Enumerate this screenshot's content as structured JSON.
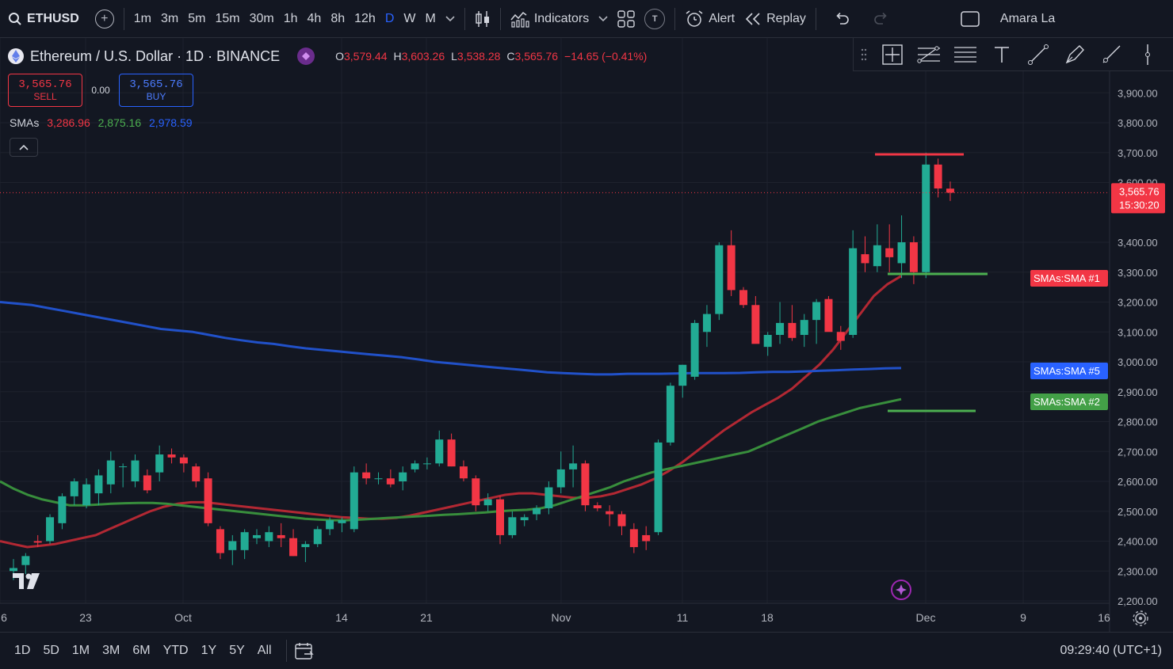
{
  "topbar": {
    "symbol": "ETHUSD",
    "intervals": [
      "1m",
      "3m",
      "5m",
      "15m",
      "30m",
      "1h",
      "4h",
      "8h",
      "12h",
      "D",
      "W",
      "M"
    ],
    "active_interval": "D",
    "indicators_label": "Indicators",
    "t_badge": "T",
    "alert_label": "Alert",
    "replay_label": "Replay",
    "user_label": "Amara La"
  },
  "legend": {
    "title": "Ethereum / U.S. Dollar · 1D · BINANCE",
    "o_label": "O",
    "o": "3,579.44",
    "h_label": "H",
    "h": "3,603.26",
    "l_label": "L",
    "l": "3,538.28",
    "c_label": "C",
    "c": "3,565.76",
    "change": "−14.65 (−0.41%)",
    "sell_price": "3,565.76",
    "sell_label": "SELL",
    "spread": "0.00",
    "buy_price": "3,565.76",
    "buy_label": "BUY",
    "sma_label": "SMAs",
    "sma1": "3,286.96",
    "sma2": "2,875.16",
    "sma5": "2,978.59"
  },
  "price_axis": {
    "ticks": [
      "3,900.00",
      "3,800.00",
      "3,700.00",
      "3,600.00",
      "3,400.00",
      "3,300.00",
      "3,200.00",
      "3,100.00",
      "3,000.00",
      "2,900.00",
      "2,800.00",
      "2,700.00",
      "2,600.00",
      "2,500.00",
      "2,400.00",
      "2,300.00",
      "2,200.00"
    ],
    "tick_values": [
      3900,
      3800,
      3700,
      3600,
      3400,
      3300,
      3200,
      3100,
      3000,
      2900,
      2800,
      2700,
      2600,
      2500,
      2400,
      2300,
      2200
    ],
    "last_price": "3,565.76",
    "countdown": "15:30:20",
    "last_value": 3565.76,
    "sma1_tag": "SMAs:SMA #1",
    "sma5_tag": "SMAs:SMA #5",
    "sma2_tag": "SMAs:SMA #2"
  },
  "time_axis": {
    "labels": [
      "6",
      "23",
      "Oct",
      "14",
      "21",
      "Nov",
      "11",
      "18",
      "Dec",
      "9",
      "16"
    ]
  },
  "bottombar": {
    "ranges": [
      "1D",
      "5D",
      "1M",
      "3M",
      "6M",
      "YTD",
      "1Y",
      "5Y",
      "All"
    ],
    "clock": "09:29:40 (UTC+1)"
  },
  "colors": {
    "up": "#22ab94",
    "down": "#f23645",
    "sma1": "#b22833",
    "sma2": "#388e3c",
    "sma5": "#2151c9",
    "accent": "#2962ff"
  },
  "chart_data": {
    "type": "candlestick",
    "ohlc": [
      [
        2300,
        2340,
        2270,
        2310
      ],
      [
        2320,
        2360,
        2290,
        2350
      ],
      [
        2400,
        2420,
        2380,
        2395
      ],
      [
        2400,
        2490,
        2390,
        2480
      ],
      [
        2460,
        2560,
        2440,
        2550
      ],
      [
        2550,
        2610,
        2520,
        2600
      ],
      [
        2520,
        2610,
        2510,
        2590
      ],
      [
        2560,
        2640,
        2520,
        2620
      ],
      [
        2590,
        2700,
        2560,
        2670
      ],
      [
        2650,
        2660,
        2580,
        2650
      ],
      [
        2600,
        2690,
        2580,
        2670
      ],
      [
        2620,
        2640,
        2560,
        2570
      ],
      [
        2630,
        2720,
        2600,
        2690
      ],
      [
        2690,
        2710,
        2660,
        2680
      ],
      [
        2680,
        2690,
        2630,
        2660
      ],
      [
        2650,
        2660,
        2580,
        2600
      ],
      [
        2610,
        2630,
        2450,
        2460
      ],
      [
        2440,
        2450,
        2340,
        2360
      ],
      [
        2370,
        2420,
        2320,
        2400
      ],
      [
        2370,
        2440,
        2340,
        2430
      ],
      [
        2410,
        2440,
        2390,
        2420
      ],
      [
        2400,
        2450,
        2380,
        2430
      ],
      [
        2420,
        2460,
        2380,
        2410
      ],
      [
        2410,
        2440,
        2350,
        2350
      ],
      [
        2380,
        2400,
        2330,
        2390
      ],
      [
        2390,
        2450,
        2380,
        2440
      ],
      [
        2440,
        2480,
        2420,
        2470
      ],
      [
        2460,
        2480,
        2430,
        2470
      ],
      [
        2440,
        2650,
        2430,
        2630
      ],
      [
        2630,
        2660,
        2590,
        2610
      ],
      [
        2610,
        2630,
        2590,
        2610
      ],
      [
        2610,
        2640,
        2580,
        2590
      ],
      [
        2600,
        2650,
        2570,
        2630
      ],
      [
        2640,
        2670,
        2630,
        2660
      ],
      [
        2660,
        2680,
        2640,
        2660
      ],
      [
        2660,
        2770,
        2650,
        2740
      ],
      [
        2740,
        2760,
        2650,
        2650
      ],
      [
        2650,
        2670,
        2600,
        2610
      ],
      [
        2610,
        2620,
        2500,
        2520
      ],
      [
        2520,
        2560,
        2500,
        2540
      ],
      [
        2540,
        2550,
        2390,
        2420
      ],
      [
        2420,
        2500,
        2410,
        2480
      ],
      [
        2470,
        2490,
        2450,
        2480
      ],
      [
        2490,
        2520,
        2470,
        2510
      ],
      [
        2510,
        2600,
        2490,
        2580
      ],
      [
        2580,
        2700,
        2560,
        2640
      ],
      [
        2640,
        2720,
        2580,
        2660
      ],
      [
        2660,
        2670,
        2500,
        2520
      ],
      [
        2520,
        2530,
        2500,
        2510
      ],
      [
        2500,
        2520,
        2450,
        2490
      ],
      [
        2490,
        2500,
        2420,
        2450
      ],
      [
        2440,
        2460,
        2360,
        2380
      ],
      [
        2420,
        2450,
        2370,
        2400
      ],
      [
        2430,
        2740,
        2420,
        2730
      ],
      [
        2730,
        2930,
        2720,
        2920
      ],
      [
        2920,
        2990,
        2880,
        2990
      ],
      [
        2950,
        3140,
        2940,
        3130
      ],
      [
        3100,
        3190,
        3050,
        3160
      ],
      [
        3160,
        3400,
        3140,
        3390
      ],
      [
        3390,
        3440,
        3220,
        3240
      ],
      [
        3240,
        3250,
        3180,
        3190
      ],
      [
        3190,
        3220,
        3070,
        3060
      ],
      [
        3050,
        3100,
        3020,
        3090
      ],
      [
        3090,
        3200,
        3060,
        3130
      ],
      [
        3130,
        3190,
        3070,
        3080
      ],
      [
        3090,
        3160,
        3050,
        3140
      ],
      [
        3140,
        3210,
        3060,
        3200
      ],
      [
        3210,
        3220,
        3110,
        3100
      ],
      [
        3100,
        3120,
        3040,
        3070
      ],
      [
        3090,
        3440,
        3080,
        3380
      ],
      [
        3360,
        3420,
        3300,
        3330
      ],
      [
        3320,
        3460,
        3300,
        3390
      ],
      [
        3380,
        3460,
        3300,
        3350
      ],
      [
        3330,
        3490,
        3280,
        3400
      ],
      [
        3400,
        3420,
        3260,
        3300
      ],
      [
        3300,
        3700,
        3280,
        3660
      ],
      [
        3660,
        3680,
        3550,
        3580
      ],
      [
        3579.44,
        3603.26,
        3538.28,
        3565.76
      ]
    ],
    "sma1": [
      2400,
      2390,
      2380,
      2385,
      2390,
      2400,
      2410,
      2420,
      2440,
      2460,
      2480,
      2500,
      2515,
      2525,
      2530,
      2530,
      2525,
      2520,
      2515,
      2510,
      2505,
      2500,
      2495,
      2490,
      2485,
      2480,
      2478,
      2475,
      2475,
      2478,
      2485,
      2495,
      2505,
      2515,
      2525,
      2535,
      2545,
      2555,
      2560,
      2560,
      2555,
      2550,
      2545,
      2545,
      2550,
      2560,
      2575,
      2590,
      2610,
      2635,
      2665,
      2700,
      2735,
      2770,
      2800,
      2830,
      2855,
      2880,
      2910,
      2950,
      2990,
      3040,
      3100,
      3160,
      3220,
      3260,
      3287
    ],
    "sma2": [
      2600,
      2575,
      2555,
      2540,
      2530,
      2520,
      2520,
      2522,
      2525,
      2527,
      2528,
      2528,
      2525,
      2520,
      2515,
      2510,
      2505,
      2500,
      2495,
      2490,
      2485,
      2480,
      2475,
      2472,
      2470,
      2470,
      2472,
      2475,
      2478,
      2480,
      2483,
      2485,
      2488,
      2490,
      2493,
      2496,
      2500,
      2503,
      2505,
      2510,
      2520,
      2535,
      2550,
      2565,
      2580,
      2600,
      2615,
      2630,
      2640,
      2650,
      2660,
      2670,
      2680,
      2690,
      2700,
      2720,
      2740,
      2760,
      2780,
      2800,
      2815,
      2830,
      2845,
      2855,
      2865,
      2875
    ],
    "sma5": [
      3200,
      3195,
      3190,
      3180,
      3170,
      3160,
      3150,
      3140,
      3130,
      3120,
      3110,
      3105,
      3100,
      3090,
      3080,
      3072,
      3065,
      3060,
      3052,
      3045,
      3040,
      3035,
      3030,
      3025,
      3020,
      3015,
      3008,
      3000,
      2995,
      2990,
      2985,
      2980,
      2975,
      2970,
      2965,
      2962,
      2960,
      2958,
      2958,
      2960,
      2960,
      2960,
      2961,
      2962,
      2962,
      2962,
      2963,
      2965,
      2966,
      2966,
      2968,
      2970,
      2972,
      2974,
      2976,
      2978,
      2979
    ],
    "ylim": [
      2200,
      3950
    ]
  }
}
